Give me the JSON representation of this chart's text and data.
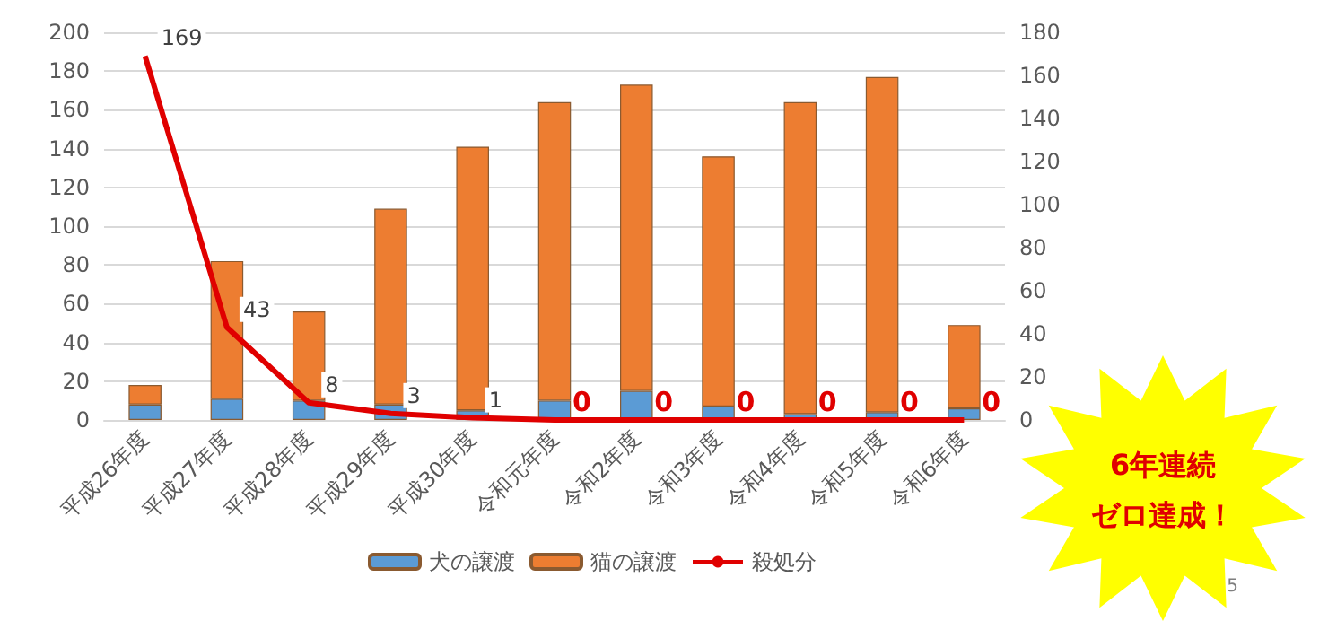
{
  "chart_data": {
    "type": "bar",
    "stacked": true,
    "categories": [
      "平成26年度",
      "平成27年度",
      "平成28年度",
      "平成29年度",
      "平成30年度",
      "令和元年度",
      "令和2年度",
      "令和3年度",
      "令和4年度",
      "令和5年度",
      "令和6年度"
    ],
    "series": [
      {
        "name": "犬の譲渡",
        "color": "#5b9bd5",
        "values": [
          8,
          11,
          10,
          8,
          5,
          10,
          15,
          7,
          3,
          4,
          6
        ]
      },
      {
        "name": "猫の譲渡",
        "color": "#ed7d31",
        "values": [
          10,
          71,
          46,
          101,
          136,
          154,
          158,
          129,
          161,
          173,
          43
        ]
      },
      {
        "name": "殺処分",
        "type": "line",
        "axis": "y2",
        "color": "#e00000",
        "values": [
          169,
          43,
          8,
          3,
          1,
          0,
          0,
          0,
          0,
          0,
          0
        ],
        "value_labels": [
          "169",
          "43",
          "8",
          "3",
          "1",
          "0",
          "0",
          "0",
          "0",
          "0",
          "0"
        ]
      }
    ],
    "ylim": [
      0,
      200
    ],
    "yticks": [
      0,
      20,
      40,
      60,
      80,
      100,
      120,
      140,
      160,
      180,
      200
    ],
    "y2lim": [
      0,
      180
    ],
    "y2ticks": [
      0,
      20,
      40,
      60,
      80,
      100,
      120,
      140,
      160,
      180
    ],
    "grid": "y",
    "legend": "bottom",
    "marker": "none",
    "line_style": "solid",
    "annotations": [
      "6年連続",
      "ゼロ達成！",
      "5"
    ]
  }
}
